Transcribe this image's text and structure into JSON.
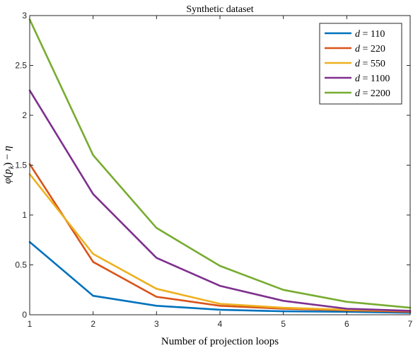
{
  "chart_data": {
    "type": "line",
    "title": "Synthetic dataset",
    "xlabel": "Number of projection loops",
    "ylabel": "φ(p_k) − η",
    "x": [
      1,
      2,
      3,
      4,
      5,
      6,
      7
    ],
    "xlim": [
      1,
      7
    ],
    "ylim": [
      0,
      3
    ],
    "xticks": [
      "1",
      "2",
      "3",
      "4",
      "5",
      "6",
      "7"
    ],
    "yticks": [
      "0",
      "0.5",
      "1",
      "1.5",
      "2",
      "2.5",
      "3"
    ],
    "grid": false,
    "legend_position": "top-right",
    "series": [
      {
        "name": "d = 110",
        "color": "#0072BD",
        "values": [
          0.73,
          0.19,
          0.09,
          0.05,
          0.035,
          0.03,
          0.02
        ]
      },
      {
        "name": "d = 220",
        "color": "#D95319",
        "values": [
          1.51,
          0.53,
          0.18,
          0.09,
          0.06,
          0.045,
          0.03
        ]
      },
      {
        "name": "d = 550",
        "color": "#EDB120",
        "values": [
          1.41,
          0.61,
          0.26,
          0.11,
          0.07,
          0.05,
          0.04
        ]
      },
      {
        "name": "d = 1100",
        "color": "#7E2F8E",
        "values": [
          2.25,
          1.21,
          0.57,
          0.29,
          0.14,
          0.06,
          0.04
        ]
      },
      {
        "name": "d = 2200",
        "color": "#77AC30",
        "values": [
          2.96,
          1.6,
          0.87,
          0.49,
          0.25,
          0.13,
          0.07
        ]
      }
    ]
  }
}
